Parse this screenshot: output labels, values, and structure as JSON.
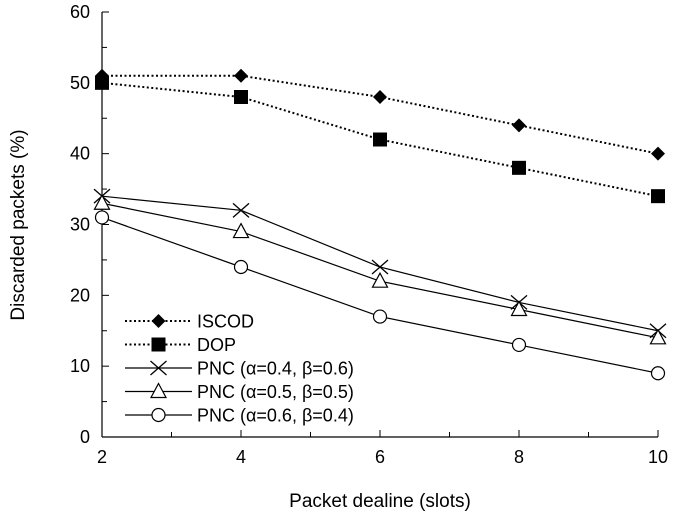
{
  "chart_data": {
    "type": "line",
    "title": "",
    "xlabel": "Packet dealine (slots)",
    "ylabel": "Discarded packets (%)",
    "x": [
      2,
      4,
      6,
      8,
      10
    ],
    "xlim": [
      2,
      10
    ],
    "ylim": [
      0,
      60
    ],
    "xticks": [
      2,
      4,
      6,
      8,
      10
    ],
    "yticks": [
      0,
      10,
      20,
      30,
      40,
      50,
      60
    ],
    "grid": false,
    "legend_position": "bottom-left",
    "series": [
      {
        "name": "ISCOD",
        "values": [
          51,
          51,
          48,
          44,
          40
        ],
        "marker": "diamond",
        "line_style": "dotted",
        "color": "#000000"
      },
      {
        "name": "DOP",
        "values": [
          50,
          48,
          42,
          38,
          34
        ],
        "marker": "square",
        "line_style": "dotted",
        "color": "#000000"
      },
      {
        "name": "PNC (α=0.4, β=0.6)",
        "values": [
          34,
          32,
          24,
          19,
          15
        ],
        "marker": "x",
        "line_style": "solid",
        "color": "#000000"
      },
      {
        "name": "PNC (α=0.5, β=0.5)",
        "values": [
          33,
          29,
          22,
          18,
          14
        ],
        "marker": "triangle",
        "line_style": "solid",
        "color": "#000000"
      },
      {
        "name": "PNC (α=0.6, β=0.4)",
        "values": [
          31,
          24,
          17,
          13,
          9
        ],
        "marker": "circle",
        "line_style": "solid",
        "color": "#000000"
      }
    ]
  }
}
